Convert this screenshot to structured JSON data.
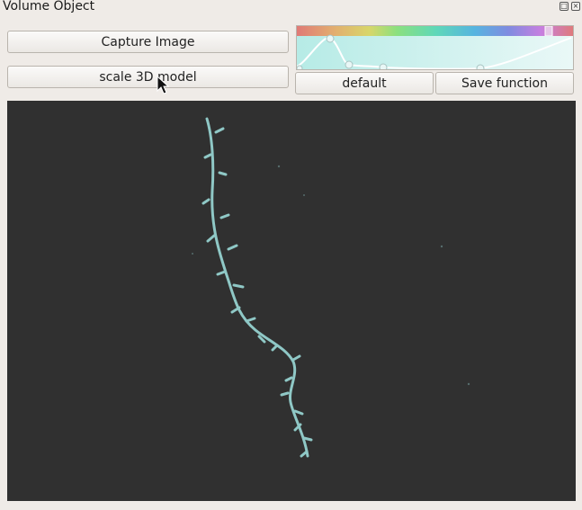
{
  "window": {
    "title": "Volume Object",
    "controls": [
      "restore-icon",
      "close-icon"
    ]
  },
  "buttons": {
    "capture": "Capture Image",
    "scale": "scale 3D model",
    "default": "default",
    "save_function": "Save function"
  },
  "transfer_function": {
    "colormap_colors": [
      "#e07a76",
      "#e2b06f",
      "#d8d66a",
      "#8be07f",
      "#5fd8b8",
      "#56b4e0",
      "#7f8be0",
      "#c77fe0",
      "#e07ab8"
    ],
    "opacity_gradient": [
      "#b6ebe6",
      "#eaf8f7"
    ]
  },
  "viewport": {
    "background": "#303030",
    "object_color": "#8fc8c6"
  },
  "colors": {
    "window_bg": "#efebe7",
    "button_border": "#b9b4ad"
  }
}
